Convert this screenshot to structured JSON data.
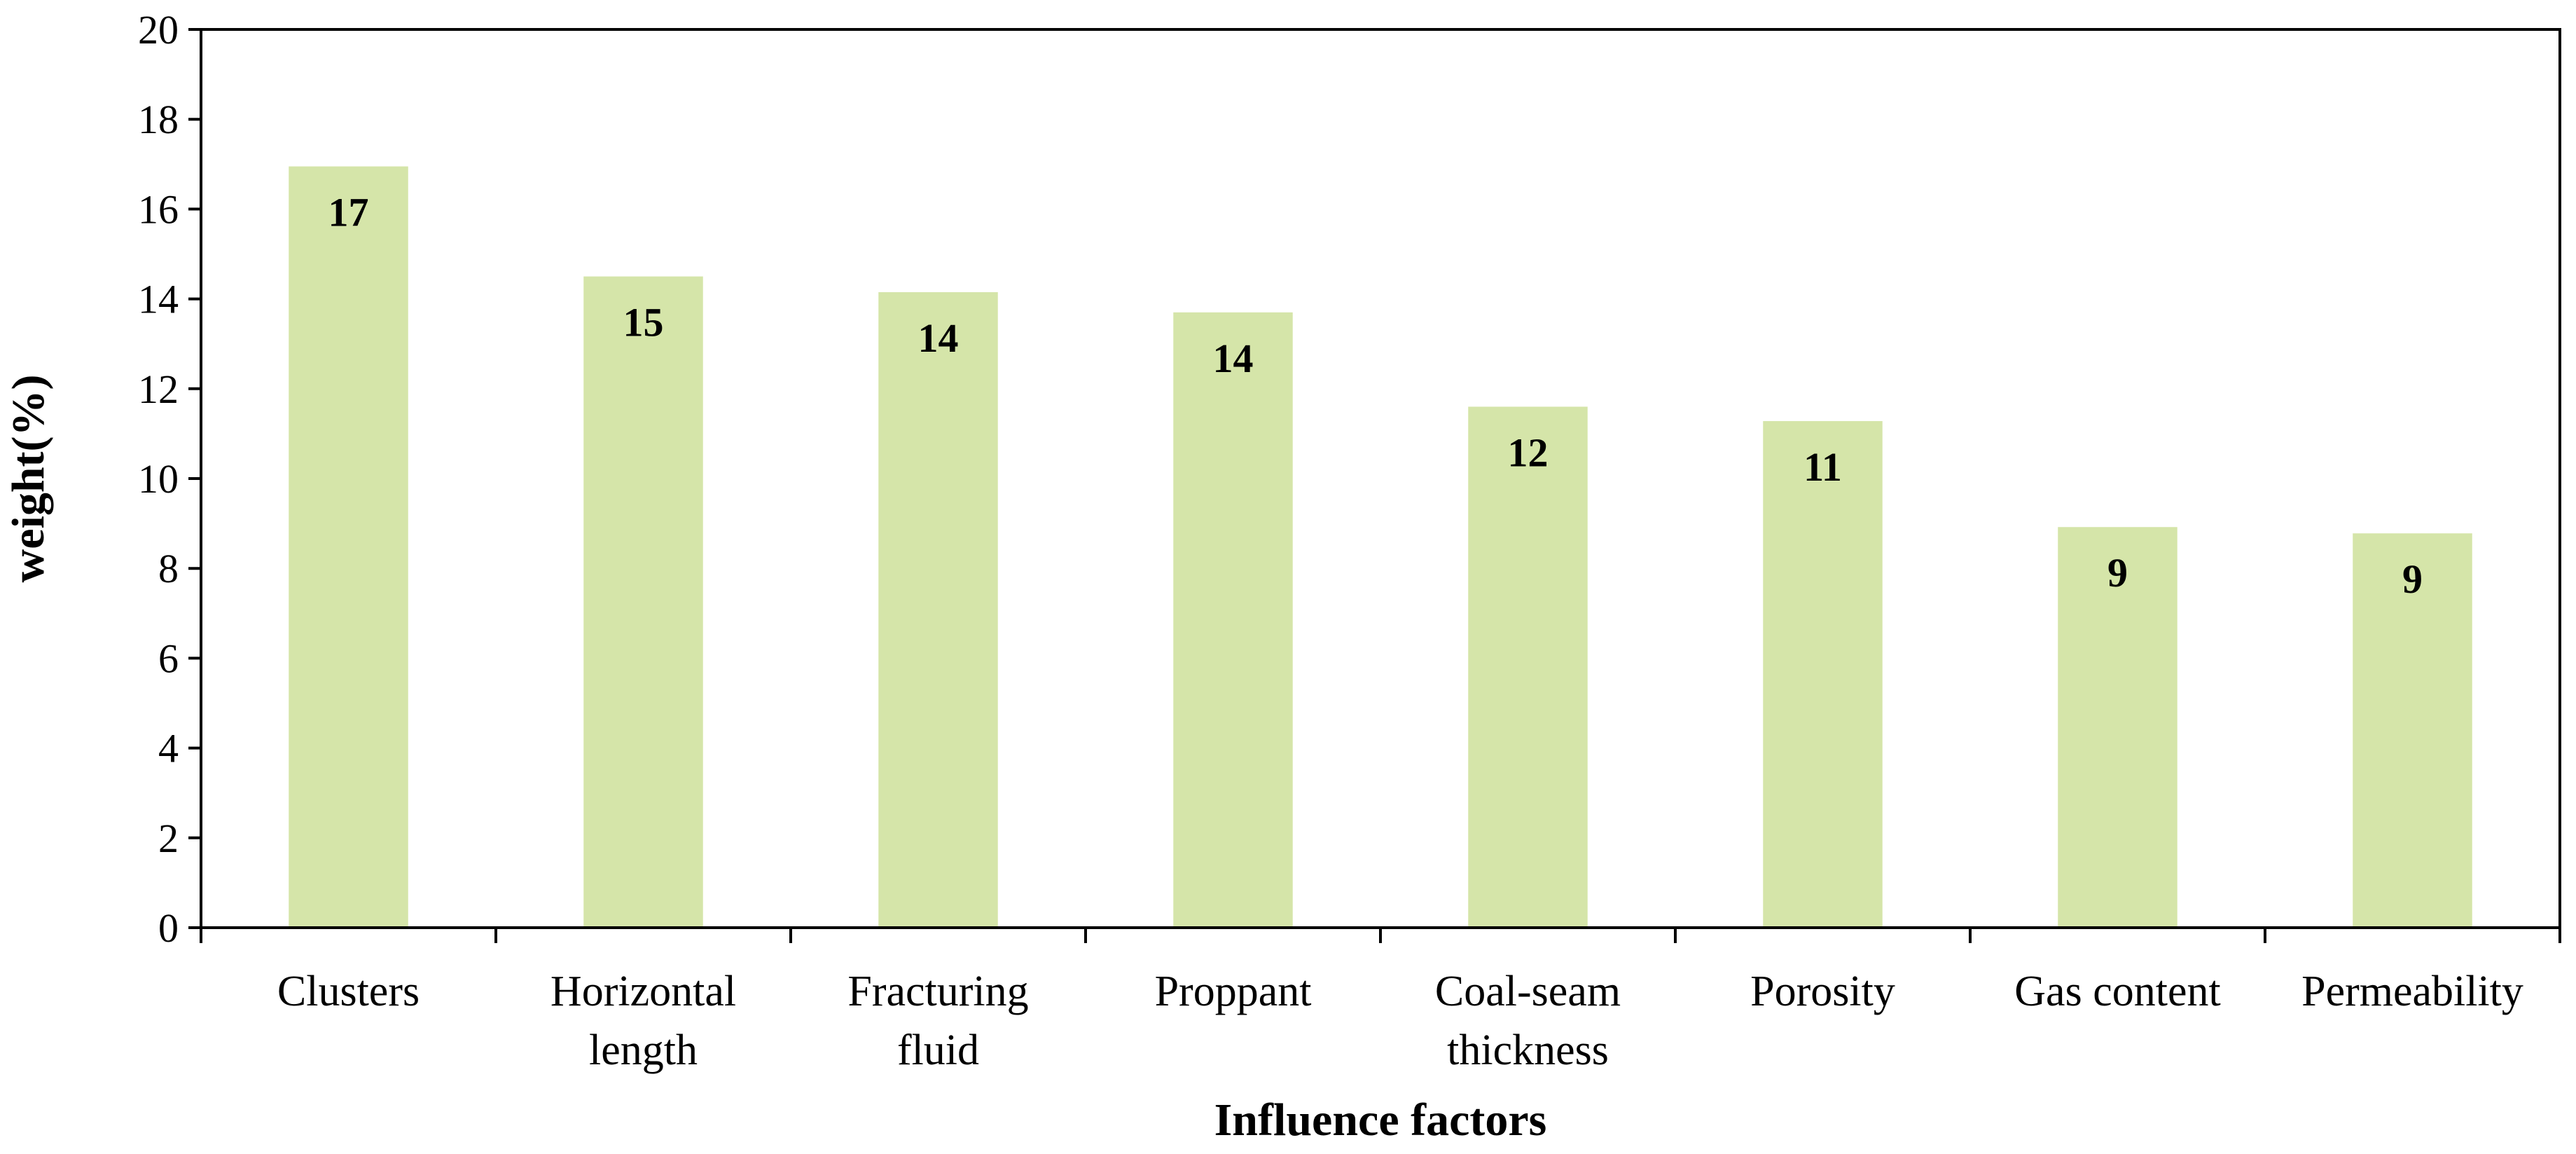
{
  "chart_data": {
    "type": "bar",
    "title": "",
    "xlabel": "Influence factors",
    "ylabel": "weight(%)",
    "ylim": [
      0,
      20
    ],
    "yticks": [
      0,
      2,
      4,
      6,
      8,
      10,
      12,
      14,
      16,
      18,
      20
    ],
    "categories": [
      [
        "Clusters"
      ],
      [
        "Horizontal",
        "length"
      ],
      [
        "Fracturing",
        "fluid"
      ],
      [
        "Proppant"
      ],
      [
        "Coal-seam",
        "thickness"
      ],
      [
        "Porosity"
      ],
      [
        "Gas content"
      ],
      [
        "Permeability"
      ]
    ],
    "values": [
      16.95,
      14.5,
      14.15,
      13.7,
      11.6,
      11.28,
      8.92,
      8.78
    ],
    "data_labels": [
      "17",
      "15",
      "14",
      "14",
      "12",
      "11",
      "9",
      "9"
    ],
    "grid": false,
    "legend": "none"
  },
  "colors": {
    "bar": "#d5e5a9",
    "axis": "#000000",
    "text": "#000000"
  }
}
